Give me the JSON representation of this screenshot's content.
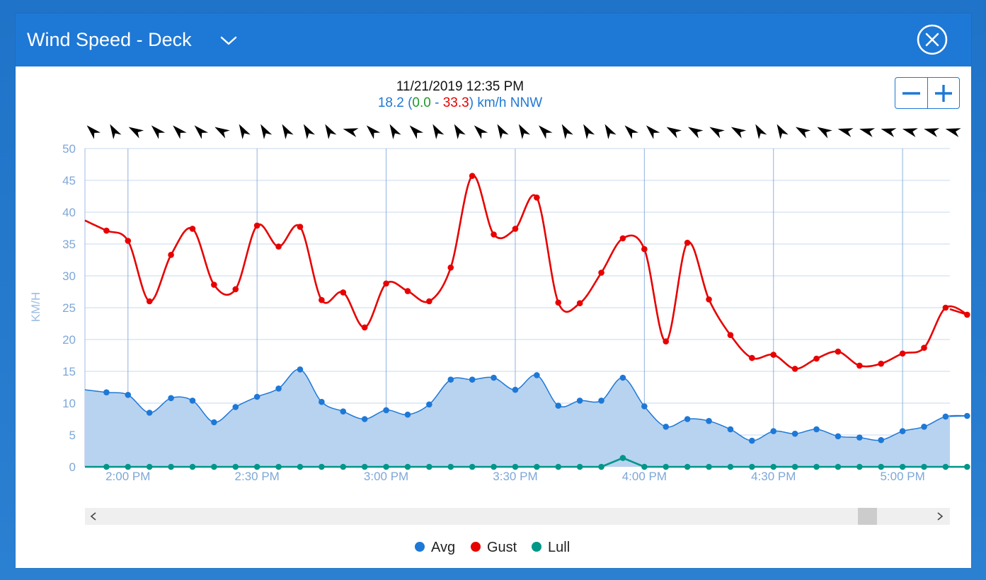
{
  "window": {
    "title": "Wind Speed - Deck"
  },
  "icons": {
    "dropdown": "chevron-down-icon",
    "close": "close-circle-icon",
    "zoom_out": "minus-icon",
    "zoom_in": "plus-icon",
    "scroll_left": "chevron-left-icon",
    "scroll_right": "chevron-right-icon"
  },
  "readout": {
    "datetime": "11/21/2019 12:35 PM",
    "avg": "18.2",
    "lull": "0.0",
    "gust": "33.3",
    "unit": "km/h",
    "direction": "NNW",
    "open_paren": " (",
    "dash": " - ",
    "close_paren": ") "
  },
  "colors": {
    "avg": "#1e78d6",
    "avg_fill": "#b8d3f0",
    "gust": "#e80000",
    "lull": "#009688",
    "axis_text": "#7ea7d8",
    "grid": "#c7d8ee",
    "header": "#1e78d6"
  },
  "chart_data": {
    "type": "line",
    "ylabel": "KM/H",
    "ylim": [
      0,
      50
    ],
    "yticks": [
      0,
      5,
      10,
      15,
      20,
      25,
      30,
      35,
      40,
      45,
      50
    ],
    "x_start": "1:50 PM",
    "x_end": "5:11 PM",
    "x_interval_min": 5,
    "x_first_point": "1:55 PM",
    "xtick_labels": [
      "2:00 PM",
      "2:30 PM",
      "3:00 PM",
      "3:30 PM",
      "4:00 PM",
      "4:30 PM",
      "5:00 PM"
    ],
    "xtick_minutes_after_start": [
      10,
      40,
      70,
      100,
      130,
      160,
      190
    ],
    "series": [
      {
        "name": "Avg",
        "values": [
          11.7,
          11.3,
          8.5,
          10.8,
          10.4,
          7.0,
          9.4,
          11.0,
          12.3,
          15.3,
          10.2,
          8.7,
          7.5,
          8.9,
          8.2,
          9.8,
          13.7,
          13.7,
          14.0,
          12.1,
          14.4,
          9.6,
          10.4,
          10.4,
          14.0,
          9.5,
          6.3,
          7.5,
          7.2,
          5.9,
          4.1,
          5.6,
          5.2,
          5.9,
          4.8,
          4.6,
          4.2,
          5.6,
          6.3,
          7.9,
          8.0
        ]
      },
      {
        "name": "Gust",
        "values": [
          37.1,
          35.5,
          26.0,
          33.3,
          37.4,
          28.6,
          27.9,
          37.9,
          34.6,
          37.7,
          26.2,
          27.4,
          21.9,
          28.8,
          27.6,
          26.0,
          31.3,
          45.7,
          36.5,
          37.4,
          42.3,
          25.8,
          25.7,
          30.5,
          35.9,
          34.2,
          19.7,
          35.2,
          26.3,
          20.7,
          17.1,
          17.6,
          15.4,
          17.0,
          18.1,
          15.9,
          16.2,
          17.8,
          18.7,
          25.0,
          23.9
        ]
      },
      {
        "name": "Lull",
        "values": [
          0,
          0,
          0,
          0,
          0,
          0,
          0,
          0,
          0,
          0,
          0,
          0,
          0,
          0,
          0,
          0,
          0,
          0,
          0,
          0,
          0,
          0,
          0,
          0,
          1.4,
          0,
          0,
          0,
          0,
          0,
          0,
          0,
          0,
          0,
          0,
          0,
          0,
          0,
          0,
          0,
          0
        ]
      }
    ],
    "wind_direction_deg": [
      315,
      330,
      300,
      315,
      315,
      315,
      300,
      330,
      330,
      330,
      330,
      330,
      285,
      315,
      330,
      315,
      330,
      330,
      315,
      330,
      330,
      315,
      330,
      330,
      330,
      315,
      315,
      300,
      300,
      300,
      300,
      330,
      330,
      300,
      300,
      285,
      285,
      285,
      285,
      285,
      285
    ],
    "legend": [
      "Avg",
      "Gust",
      "Lull"
    ],
    "legend_position": "bottom-center",
    "grid": true
  }
}
